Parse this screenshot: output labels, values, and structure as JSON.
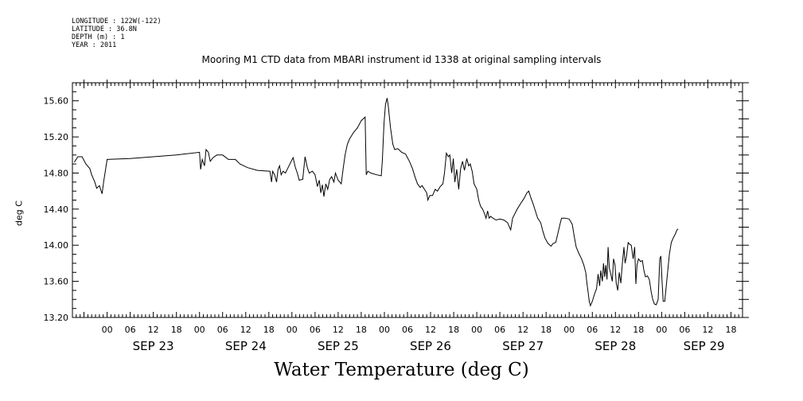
{
  "meta": {
    "longitude": "LONGITUDE : 122W(-122)",
    "latitude": "LATITUDE : 36.8N",
    "depth": "DEPTH (m) : 1",
    "year": "YEAR : 2011"
  },
  "chart_data": {
    "type": "line",
    "title": "Mooring M1 CTD data from MBARI instrument id 1338 at original sampling intervals",
    "xlabel": "Water Temperature (deg C)",
    "ylabel": "deg C",
    "xlim": [
      -9,
      165
    ],
    "ylim": [
      13.2,
      15.8
    ],
    "grid": false,
    "x_units": "hours since SEP 23 00:00",
    "y_ticks": [
      "13.20",
      "13.60",
      "14.00",
      "14.40",
      "14.80",
      "15.20",
      "15.60"
    ],
    "x_ticks": [
      {
        "x": 0,
        "label": "00"
      },
      {
        "x": 6,
        "label": "06"
      },
      {
        "x": 12,
        "label": "12"
      },
      {
        "x": 18,
        "label": "18"
      },
      {
        "x": 24,
        "label": "00"
      },
      {
        "x": 30,
        "label": "06"
      },
      {
        "x": 36,
        "label": "12"
      },
      {
        "x": 42,
        "label": "18"
      },
      {
        "x": 48,
        "label": "00"
      },
      {
        "x": 54,
        "label": "06"
      },
      {
        "x": 60,
        "label": "12"
      },
      {
        "x": 66,
        "label": "18"
      },
      {
        "x": 72,
        "label": "00"
      },
      {
        "x": 78,
        "label": "06"
      },
      {
        "x": 84,
        "label": "12"
      },
      {
        "x": 90,
        "label": "18"
      },
      {
        "x": 96,
        "label": "00"
      },
      {
        "x": 102,
        "label": "06"
      },
      {
        "x": 108,
        "label": "12"
      },
      {
        "x": 114,
        "label": "18"
      },
      {
        "x": 120,
        "label": "00"
      },
      {
        "x": 126,
        "label": "06"
      },
      {
        "x": 132,
        "label": "12"
      },
      {
        "x": 138,
        "label": "18"
      },
      {
        "x": 144,
        "label": "00"
      },
      {
        "x": 150,
        "label": "06"
      },
      {
        "x": 156,
        "label": "12"
      },
      {
        "x": 162,
        "label": "18"
      }
    ],
    "day_labels": [
      {
        "x": 12,
        "label": "SEP 23"
      },
      {
        "x": 36,
        "label": "SEP 24"
      },
      {
        "x": 60,
        "label": "SEP 25"
      },
      {
        "x": 84,
        "label": "SEP 26"
      },
      {
        "x": 108,
        "label": "SEP 27"
      },
      {
        "x": 132,
        "label": "SEP 28"
      },
      {
        "x": 155,
        "label": "SEP 29"
      }
    ],
    "series": [
      {
        "points": [
          [
            -8.5,
            14.92
          ],
          [
            -7.6,
            14.98
          ],
          [
            -6.5,
            14.98
          ],
          [
            -5.5,
            14.9
          ],
          [
            -4.5,
            14.85
          ],
          [
            -4,
            14.78
          ],
          [
            -3.2,
            14.7
          ],
          [
            -2.7,
            14.63
          ],
          [
            -2,
            14.66
          ],
          [
            -1.3,
            14.57
          ],
          [
            -0.9,
            14.7
          ],
          [
            0,
            14.95
          ],
          [
            6,
            14.96
          ],
          [
            12,
            14.98
          ],
          [
            18,
            15.0
          ],
          [
            24,
            15.03
          ],
          [
            24.3,
            14.84
          ],
          [
            24.7,
            14.95
          ],
          [
            25.3,
            14.88
          ],
          [
            25.7,
            15.06
          ],
          [
            26.3,
            15.03
          ],
          [
            26.8,
            14.93
          ],
          [
            27.5,
            14.97
          ],
          [
            28.5,
            15.0
          ],
          [
            30,
            15.0
          ],
          [
            31.5,
            14.95
          ],
          [
            33.3,
            14.95
          ],
          [
            34.5,
            14.9
          ],
          [
            36.5,
            14.86
          ],
          [
            39,
            14.83
          ],
          [
            42.3,
            14.82
          ],
          [
            42.7,
            14.7
          ],
          [
            43,
            14.82
          ],
          [
            43.5,
            14.78
          ],
          [
            44,
            14.7
          ],
          [
            44.4,
            14.84
          ],
          [
            44.8,
            14.88
          ],
          [
            45.2,
            14.78
          ],
          [
            45.7,
            14.82
          ],
          [
            46.3,
            14.8
          ],
          [
            47,
            14.86
          ],
          [
            47.8,
            14.93
          ],
          [
            48.3,
            14.97
          ],
          [
            48.9,
            14.86
          ],
          [
            49.4,
            14.8
          ],
          [
            49.9,
            14.72
          ],
          [
            50.8,
            14.73
          ],
          [
            51.4,
            14.98
          ],
          [
            52,
            14.86
          ],
          [
            52.5,
            14.8
          ],
          [
            53.3,
            14.82
          ],
          [
            54,
            14.78
          ],
          [
            54.6,
            14.65
          ],
          [
            55.1,
            14.72
          ],
          [
            55.5,
            14.58
          ],
          [
            55.9,
            14.67
          ],
          [
            56.3,
            14.54
          ],
          [
            56.8,
            14.68
          ],
          [
            57.3,
            14.62
          ],
          [
            57.8,
            14.73
          ],
          [
            58.3,
            14.76
          ],
          [
            58.9,
            14.7
          ],
          [
            59.3,
            14.8
          ],
          [
            60,
            14.72
          ],
          [
            60.8,
            14.68
          ],
          [
            61.3,
            14.85
          ],
          [
            61.8,
            15.0
          ],
          [
            62.4,
            15.12
          ],
          [
            63,
            15.18
          ],
          [
            64,
            15.25
          ],
          [
            65,
            15.3
          ],
          [
            66,
            15.38
          ],
          [
            67,
            15.42
          ],
          [
            67.3,
            14.78
          ],
          [
            67.7,
            14.82
          ],
          [
            68.5,
            14.8
          ],
          [
            70,
            14.78
          ],
          [
            71.2,
            14.77
          ],
          [
            71.5,
            14.95
          ],
          [
            71.9,
            15.35
          ],
          [
            72.3,
            15.56
          ],
          [
            72.7,
            15.63
          ],
          [
            73,
            15.55
          ],
          [
            73.6,
            15.3
          ],
          [
            74.2,
            15.12
          ],
          [
            74.7,
            15.06
          ],
          [
            75.5,
            15.07
          ],
          [
            76.5,
            15.03
          ],
          [
            77.5,
            15.01
          ],
          [
            78.5,
            14.93
          ],
          [
            79.3,
            14.85
          ],
          [
            80,
            14.75
          ],
          [
            80.6,
            14.68
          ],
          [
            81.3,
            14.64
          ],
          [
            81.8,
            14.66
          ],
          [
            82.4,
            14.62
          ],
          [
            83,
            14.58
          ],
          [
            83.3,
            14.5
          ],
          [
            83.8,
            14.55
          ],
          [
            84.5,
            14.55
          ],
          [
            85.2,
            14.62
          ],
          [
            85.8,
            14.6
          ],
          [
            86.5,
            14.65
          ],
          [
            87.2,
            14.68
          ],
          [
            87.6,
            14.8
          ],
          [
            88.1,
            15.02
          ],
          [
            88.6,
            14.98
          ],
          [
            89,
            15.0
          ],
          [
            89.5,
            14.8
          ],
          [
            89.9,
            14.96
          ],
          [
            90.3,
            14.7
          ],
          [
            90.8,
            14.84
          ],
          [
            91.3,
            14.62
          ],
          [
            91.8,
            14.85
          ],
          [
            92.3,
            14.93
          ],
          [
            92.8,
            14.83
          ],
          [
            93.4,
            14.96
          ],
          [
            93.9,
            14.88
          ],
          [
            94.3,
            14.9
          ],
          [
            94.8,
            14.82
          ],
          [
            95.3,
            14.68
          ],
          [
            96,
            14.62
          ],
          [
            96.5,
            14.5
          ],
          [
            97,
            14.43
          ],
          [
            97.5,
            14.4
          ],
          [
            98,
            14.35
          ],
          [
            98.4,
            14.3
          ],
          [
            98.8,
            14.38
          ],
          [
            99.2,
            14.3
          ],
          [
            99.6,
            14.32
          ],
          [
            100.2,
            14.3
          ],
          [
            101,
            14.28
          ],
          [
            102,
            14.29
          ],
          [
            103,
            14.28
          ],
          [
            104,
            14.25
          ],
          [
            104.5,
            14.2
          ],
          [
            104.8,
            14.17
          ],
          [
            105.3,
            14.3
          ],
          [
            106.5,
            14.4
          ],
          [
            107.5,
            14.47
          ],
          [
            108.3,
            14.52
          ],
          [
            109,
            14.58
          ],
          [
            109.5,
            14.6
          ],
          [
            110,
            14.53
          ],
          [
            110.7,
            14.45
          ],
          [
            111.2,
            14.38
          ],
          [
            111.8,
            14.3
          ],
          [
            112.6,
            14.25
          ],
          [
            113.2,
            14.15
          ],
          [
            113.7,
            14.08
          ],
          [
            114.5,
            14.02
          ],
          [
            115.3,
            13.99
          ],
          [
            115.8,
            14.02
          ],
          [
            116.5,
            14.03
          ],
          [
            117,
            14.12
          ],
          [
            117.6,
            14.23
          ],
          [
            118,
            14.3
          ],
          [
            119,
            14.3
          ],
          [
            120,
            14.29
          ],
          [
            120.8,
            14.23
          ],
          [
            121.3,
            14.1
          ],
          [
            121.8,
            13.98
          ],
          [
            122.5,
            13.91
          ],
          [
            123.2,
            13.85
          ],
          [
            123.8,
            13.78
          ],
          [
            124.3,
            13.7
          ],
          [
            124.6,
            13.58
          ],
          [
            124.9,
            13.48
          ],
          [
            125.2,
            13.38
          ],
          [
            125.5,
            13.33
          ],
          [
            126,
            13.38
          ],
          [
            126.5,
            13.45
          ],
          [
            127.1,
            13.52
          ],
          [
            127.5,
            13.68
          ],
          [
            127.9,
            13.55
          ],
          [
            128.2,
            13.72
          ],
          [
            128.6,
            13.6
          ],
          [
            128.9,
            13.8
          ],
          [
            129.2,
            13.65
          ],
          [
            129.5,
            13.78
          ],
          [
            129.8,
            13.62
          ],
          [
            130.1,
            13.98
          ],
          [
            130.4,
            13.75
          ],
          [
            130.8,
            13.68
          ],
          [
            131.2,
            13.6
          ],
          [
            131.5,
            13.85
          ],
          [
            131.9,
            13.78
          ],
          [
            132.2,
            13.58
          ],
          [
            132.6,
            13.5
          ],
          [
            133,
            13.7
          ],
          [
            133.4,
            13.58
          ],
          [
            133.8,
            13.8
          ],
          [
            134.2,
            13.98
          ],
          [
            134.5,
            13.8
          ],
          [
            134.9,
            13.88
          ],
          [
            135.3,
            14.03
          ],
          [
            135.7,
            14.01
          ],
          [
            136.1,
            14.0
          ],
          [
            136.6,
            13.85
          ],
          [
            137,
            13.98
          ],
          [
            137.3,
            13.57
          ],
          [
            137.6,
            13.78
          ],
          [
            138,
            13.85
          ],
          [
            138.5,
            13.82
          ],
          [
            139,
            13.83
          ],
          [
            139.4,
            13.72
          ],
          [
            139.8,
            13.65
          ],
          [
            140.3,
            13.66
          ],
          [
            140.8,
            13.62
          ],
          [
            141.3,
            13.48
          ],
          [
            141.7,
            13.4
          ],
          [
            142.1,
            13.35
          ],
          [
            142.6,
            13.34
          ],
          [
            143.1,
            13.4
          ],
          [
            143.5,
            13.85
          ],
          [
            143.8,
            13.88
          ],
          [
            144.1,
            13.6
          ],
          [
            144.4,
            13.38
          ],
          [
            144.8,
            13.38
          ],
          [
            145.2,
            13.55
          ],
          [
            145.6,
            13.72
          ],
          [
            146,
            13.9
          ],
          [
            146.5,
            14.03
          ],
          [
            147,
            14.08
          ],
          [
            147.5,
            14.12
          ],
          [
            148,
            14.17
          ],
          [
            148.3,
            14.18
          ]
        ]
      }
    ]
  }
}
